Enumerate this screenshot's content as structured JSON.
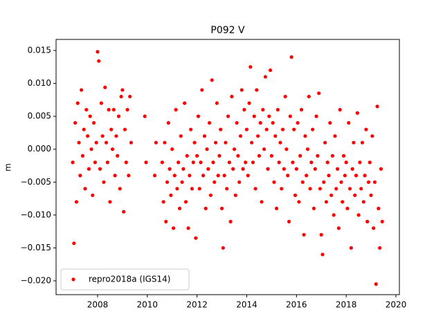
{
  "chart_data": {
    "type": "scatter",
    "title": "P092 V",
    "y_label": "m",
    "series": [
      {
        "name": "repro2018a (IGS14)",
        "color": "#ff0000",
        "x": [
          2007.0,
          2007.05,
          2007.1,
          2007.15,
          2007.2,
          2007.25,
          2007.3,
          2007.35,
          2007.4,
          2007.45,
          2007.5,
          2007.55,
          2007.6,
          2007.65,
          2007.7,
          2007.75,
          2007.8,
          2007.85,
          2007.9,
          2007.95,
          2008.0,
          2008.05,
          2008.1,
          2008.15,
          2008.2,
          2008.25,
          2008.3,
          2008.35,
          2008.4,
          2008.45,
          2008.5,
          2008.55,
          2008.6,
          2008.65,
          2008.7,
          2008.75,
          2008.8,
          2008.85,
          2008.9,
          2008.95,
          2009.0,
          2009.05,
          2009.1,
          2009.15,
          2009.2,
          2009.25,
          2009.3,
          2009.35,
          2009.9,
          2009.95,
          2010.3,
          2010.35,
          2010.6,
          2010.65,
          2010.7,
          2010.75,
          2010.8,
          2010.85,
          2010.9,
          2010.95,
          2011.0,
          2011.05,
          2011.1,
          2011.15,
          2011.2,
          2011.25,
          2011.3,
          2011.35,
          2011.4,
          2011.45,
          2011.5,
          2011.55,
          2011.6,
          2011.65,
          2011.7,
          2011.75,
          2011.8,
          2011.85,
          2011.9,
          2011.95,
          2012.0,
          2012.05,
          2012.1,
          2012.15,
          2012.2,
          2012.25,
          2012.3,
          2012.35,
          2012.4,
          2012.45,
          2012.5,
          2012.55,
          2012.6,
          2012.65,
          2012.7,
          2012.75,
          2012.8,
          2012.85,
          2012.9,
          2012.95,
          2013.0,
          2013.05,
          2013.1,
          2013.15,
          2013.2,
          2013.25,
          2013.3,
          2013.35,
          2013.4,
          2013.45,
          2013.5,
          2013.55,
          2013.6,
          2013.65,
          2013.7,
          2013.75,
          2013.8,
          2013.85,
          2013.9,
          2013.95,
          2014.0,
          2014.05,
          2014.1,
          2014.15,
          2014.2,
          2014.25,
          2014.3,
          2014.35,
          2014.4,
          2014.45,
          2014.5,
          2014.55,
          2014.6,
          2014.65,
          2014.7,
          2014.75,
          2014.8,
          2014.85,
          2014.9,
          2014.95,
          2015.0,
          2015.05,
          2015.1,
          2015.15,
          2015.2,
          2015.25,
          2015.3,
          2015.35,
          2015.4,
          2015.45,
          2015.5,
          2015.55,
          2015.6,
          2015.65,
          2015.7,
          2015.75,
          2015.8,
          2015.85,
          2015.9,
          2015.95,
          2016.0,
          2016.05,
          2016.1,
          2016.15,
          2016.2,
          2016.25,
          2016.3,
          2016.35,
          2016.4,
          2016.45,
          2016.5,
          2016.55,
          2016.6,
          2016.65,
          2016.7,
          2016.75,
          2016.8,
          2016.85,
          2016.9,
          2016.95,
          2017.0,
          2017.05,
          2017.1,
          2017.15,
          2017.2,
          2017.25,
          2017.3,
          2017.35,
          2017.4,
          2017.45,
          2017.5,
          2017.55,
          2017.6,
          2017.65,
          2017.7,
          2017.75,
          2017.8,
          2017.85,
          2017.9,
          2017.95,
          2018.0,
          2018.05,
          2018.1,
          2018.15,
          2018.2,
          2018.25,
          2018.3,
          2018.35,
          2018.4,
          2018.45,
          2018.5,
          2018.55,
          2018.6,
          2018.65,
          2018.7,
          2018.75,
          2018.8,
          2018.85,
          2018.9,
          2018.95,
          2019.0,
          2019.05,
          2019.1,
          2019.15,
          2019.2,
          2019.25,
          2019.3,
          2019.35,
          2019.4,
          2019.45
        ],
        "values": [
          -0.002,
          -0.0143,
          0.004,
          -0.008,
          0.007,
          0.001,
          -0.004,
          0.009,
          -0.001,
          0.003,
          -0.006,
          0.006,
          0.002,
          -0.003,
          0.005,
          0.0,
          -0.007,
          0.004,
          -0.002,
          0.001,
          0.0148,
          0.0134,
          -0.003,
          0.007,
          0.002,
          -0.005,
          0.0094,
          0.001,
          -0.002,
          0.006,
          -0.008,
          0.003,
          0.0,
          0.006,
          -0.004,
          0.002,
          -0.001,
          0.005,
          -0.006,
          0.008,
          0.009,
          -0.0095,
          0.003,
          -0.002,
          0.006,
          -0.004,
          0.008,
          0.001,
          0.005,
          -0.002,
          -0.004,
          0.001,
          -0.002,
          -0.008,
          0.001,
          -0.011,
          -0.005,
          0.004,
          -0.003,
          -0.007,
          0.0,
          -0.012,
          -0.004,
          0.006,
          -0.006,
          -0.002,
          -0.009,
          0.002,
          -0.005,
          -0.003,
          0.007,
          -0.008,
          -0.001,
          -0.012,
          -0.004,
          0.003,
          -0.006,
          -0.002,
          0.001,
          -0.0135,
          -0.001,
          0.005,
          -0.006,
          -0.002,
          0.009,
          -0.004,
          0.002,
          -0.009,
          0.0,
          -0.003,
          0.004,
          -0.007,
          0.0105,
          -0.002,
          -0.005,
          0.001,
          0.007,
          -0.004,
          -0.001,
          0.003,
          -0.009,
          -0.015,
          -0.004,
          0.001,
          -0.006,
          0.005,
          -0.002,
          -0.011,
          0.008,
          -0.003,
          0.0,
          -0.007,
          0.004,
          -0.001,
          -0.005,
          0.002,
          0.009,
          -0.003,
          0.006,
          -0.002,
          0.003,
          -0.004,
          0.007,
          0.0125,
          0.001,
          -0.002,
          0.005,
          -0.006,
          0.009,
          0.002,
          -0.001,
          0.004,
          -0.008,
          0.006,
          0.0,
          0.011,
          0.003,
          -0.003,
          0.005,
          0.012,
          -0.001,
          0.004,
          -0.005,
          0.002,
          -0.009,
          0.006,
          -0.002,
          0.001,
          -0.006,
          0.003,
          -0.003,
          0.008,
          0.0,
          -0.004,
          -0.011,
          0.005,
          0.014,
          -0.002,
          0.003,
          -0.007,
          -0.003,
          0.004,
          -0.008,
          -0.001,
          0.006,
          -0.005,
          -0.013,
          0.002,
          -0.004,
          0.0,
          0.008,
          -0.006,
          -0.002,
          0.003,
          -0.009,
          -0.003,
          0.005,
          -0.001,
          0.0085,
          -0.006,
          -0.013,
          -0.016,
          -0.005,
          0.001,
          -0.008,
          -0.002,
          -0.004,
          0.004,
          -0.007,
          -0.001,
          -0.01,
          0.002,
          -0.006,
          -0.003,
          -0.012,
          0.006,
          -0.005,
          -0.008,
          -0.001,
          -0.004,
          -0.002,
          -0.009,
          0.004,
          -0.006,
          -0.015,
          -0.003,
          0.001,
          -0.007,
          -0.004,
          0.0055,
          -0.01,
          -0.002,
          -0.006,
          0.001,
          -0.008,
          -0.004,
          0.003,
          -0.011,
          -0.005,
          -0.002,
          -0.007,
          0.002,
          -0.012,
          -0.005,
          -0.0205,
          0.0065,
          -0.009,
          -0.015,
          -0.003,
          -0.011
        ]
      }
    ],
    "xlim": [
      2006.33,
      2020.14
    ],
    "xticks": [
      2008,
      2010,
      2012,
      2014,
      2016,
      2018,
      2020
    ],
    "ylim": [
      -0.0221,
      0.01668
    ],
    "yticks": [
      {
        "value": -0.02,
        "label": "−0.020"
      },
      {
        "value": -0.015,
        "label": "−0.015"
      },
      {
        "value": -0.01,
        "label": "−0.010"
      },
      {
        "value": -0.005,
        "label": "−0.005"
      },
      {
        "value": 0,
        "label": "0.000"
      },
      {
        "value": 0.005,
        "label": "0.005"
      },
      {
        "value": 0.01,
        "label": "0.010"
      },
      {
        "value": 0.015,
        "label": "0.015"
      }
    ],
    "legend": "lower left"
  }
}
